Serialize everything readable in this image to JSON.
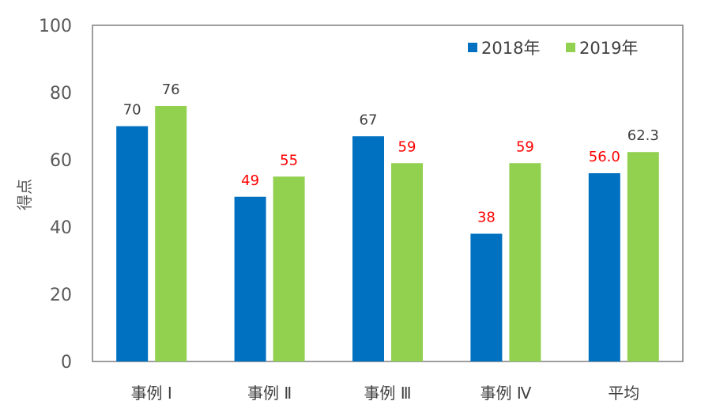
{
  "chart_data": {
    "type": "bar",
    "title": "",
    "xlabel": "",
    "ylabel": "得点",
    "ylim": [
      0,
      100
    ],
    "yticks": [
      0,
      20,
      40,
      60,
      80,
      100
    ],
    "grid": false,
    "legend_position": "top-right",
    "categories": [
      "事例 Ⅰ",
      "事例 Ⅱ",
      "事例 Ⅲ",
      "事例 Ⅳ",
      "平均"
    ],
    "series": [
      {
        "name": "2018年",
        "color": "#0070C0",
        "values": [
          70,
          49,
          67,
          38,
          56.0
        ],
        "labels": [
          "70",
          "49",
          "67",
          "38",
          "56.0"
        ],
        "label_colors": [
          "#404040",
          "#FF0000",
          "#404040",
          "#FF0000",
          "#FF0000"
        ]
      },
      {
        "name": "2019年",
        "color": "#92D050",
        "values": [
          76,
          55,
          59,
          59,
          62.3
        ],
        "labels": [
          "76",
          "55",
          "59",
          "59",
          "62.3"
        ],
        "label_colors": [
          "#404040",
          "#FF0000",
          "#FF0000",
          "#FF0000",
          "#404040"
        ]
      }
    ]
  }
}
